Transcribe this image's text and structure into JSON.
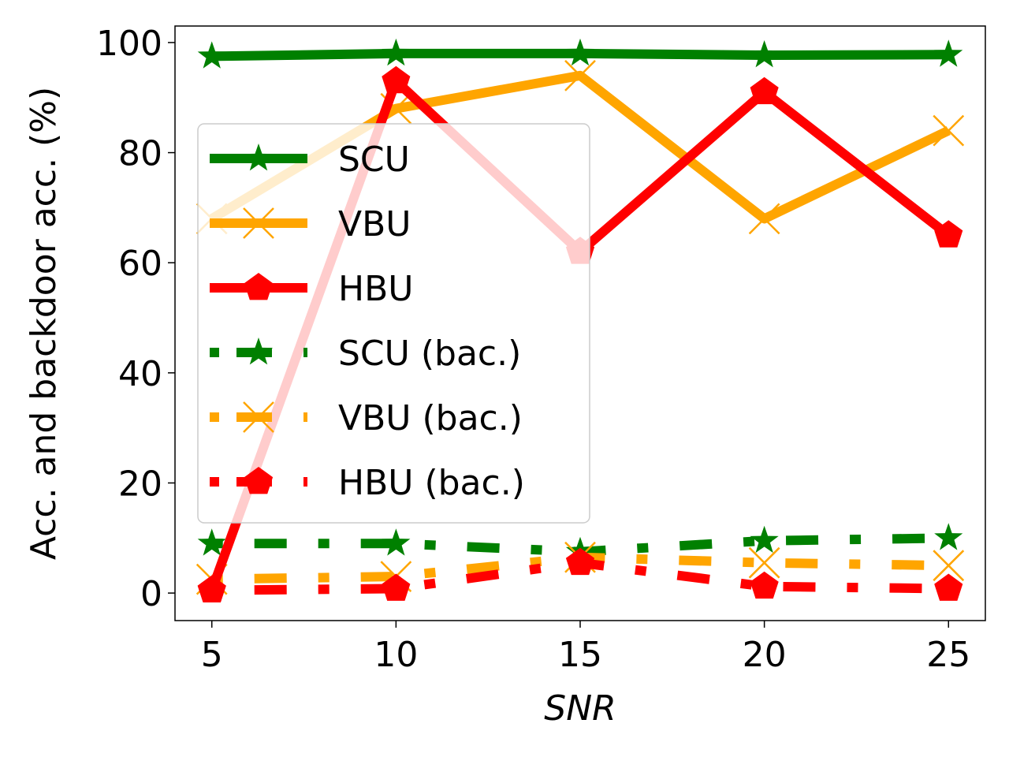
{
  "chart_data": {
    "type": "line",
    "xlabel": "SNR",
    "ylabel": "Acc. and backdoor acc. (%)",
    "x": [
      5,
      10,
      15,
      20,
      25
    ],
    "xticks": [
      "5",
      "10",
      "15",
      "20",
      "25"
    ],
    "yticks": [
      "0",
      "20",
      "40",
      "60",
      "80",
      "100"
    ],
    "xlim": [
      4,
      26
    ],
    "ylim": [
      -5,
      103
    ],
    "grid": false,
    "legend_position": "center-left",
    "series": [
      {
        "name": "SCU",
        "values": [
          97.5,
          98,
          98,
          97.7,
          97.8
        ],
        "color": "#008000",
        "marker": "star",
        "style": "solid"
      },
      {
        "name": "VBU",
        "values": [
          68,
          88,
          94,
          68,
          84
        ],
        "color": "#FFA500",
        "marker": "x",
        "style": "solid"
      },
      {
        "name": "HBU",
        "values": [
          0.5,
          93,
          62,
          91,
          65
        ],
        "color": "#FF0000",
        "marker": "pentagon",
        "style": "solid"
      },
      {
        "name": "SCU (bac.)",
        "values": [
          9,
          9,
          7.5,
          9.5,
          10
        ],
        "color": "#008000",
        "marker": "star",
        "style": "dashdot"
      },
      {
        "name": "VBU (bac.)",
        "values": [
          2.5,
          3,
          6.5,
          5.5,
          5
        ],
        "color": "#FFA500",
        "marker": "x",
        "style": "dashdot"
      },
      {
        "name": "HBU (bac.)",
        "values": [
          0.5,
          0.8,
          5.5,
          1.2,
          0.8
        ],
        "color": "#FF0000",
        "marker": "pentagon",
        "style": "dashdot"
      }
    ]
  }
}
